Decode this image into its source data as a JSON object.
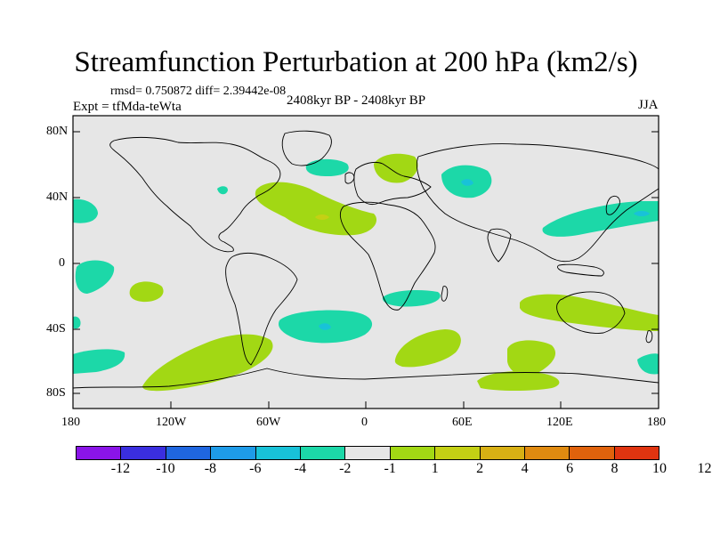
{
  "title": "Streamfunction Perturbation at 200 hPa (km2/s)",
  "stats": "rmsd= 0.750872 diff= 2.39442e-08",
  "experiment": "Expt = tfMda-teWta",
  "period": "2408kyr BP - 2408kyr BP",
  "season": "JJA",
  "lat_ticks": [
    "80N",
    "40N",
    "0",
    "40S",
    "80S"
  ],
  "lon_ticks": [
    "180",
    "120W",
    "60W",
    "0",
    "60E",
    "120E",
    "180"
  ],
  "colorbar": {
    "colors": [
      "#8a14e8",
      "#3a2ee0",
      "#1f66e0",
      "#1e9be8",
      "#18c2d8",
      "#1cd8a8",
      "#e6e6e6",
      "#a2d814",
      "#c4d014",
      "#d8b014",
      "#e08a10",
      "#e0620c",
      "#e03410"
    ],
    "labels": [
      "-12",
      "-10",
      "-8",
      "-6",
      "-4",
      "-2",
      "-1",
      "1",
      "2",
      "4",
      "6",
      "8",
      "10",
      "12"
    ]
  },
  "colors": {
    "background": "#e6e6e6",
    "negative_light": "#1cd8a8",
    "negative_mid": "#18c2d8",
    "positive_light": "#a2d814",
    "positive_mid": "#c4d014"
  }
}
